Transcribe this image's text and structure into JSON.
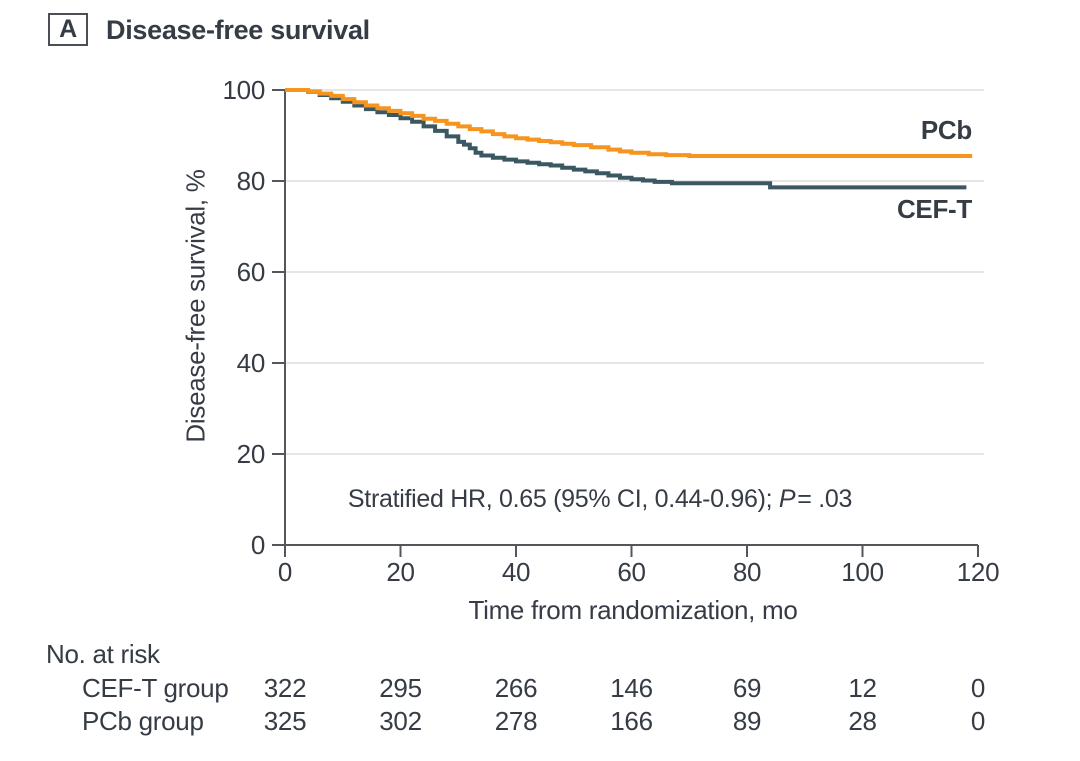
{
  "panel": {
    "letter": "A",
    "title": "Disease-free survival"
  },
  "colors": {
    "text": "#363C46",
    "axis": "#53575C",
    "grid": "#E6E6E6",
    "pcb_orange": "#F5941E",
    "ceft_teal": "#3A5762"
  },
  "chart_data": {
    "type": "line",
    "subtype": "kaplan-meier-step",
    "title": "Disease-free survival",
    "xlabel": "Time from randomization, mo",
    "ylabel": "Disease-free survival, %",
    "xlim": [
      0,
      120
    ],
    "ylim": [
      0,
      100
    ],
    "xticks": [
      0,
      20,
      40,
      60,
      80,
      100,
      120
    ],
    "yticks": [
      0,
      20,
      40,
      60,
      80,
      100
    ],
    "grid": "horizontal",
    "legend_position": "curve-end-labels",
    "annotation": {
      "text_before_p": "Stratified HR, 0.65 (95% CI, 0.44-0.96); ",
      "p_label": "P",
      "p_suffix": "= .03"
    },
    "series": [
      {
        "name": "PCb",
        "color": "#F5941E",
        "final_value": 85.5,
        "points": [
          [
            0,
            100
          ],
          [
            3.5,
            100
          ],
          [
            4,
            99.7
          ],
          [
            6,
            99.2
          ],
          [
            8,
            98.7
          ],
          [
            10,
            98.0
          ],
          [
            12,
            97.3
          ],
          [
            14,
            96.6
          ],
          [
            16,
            96.0
          ],
          [
            18,
            95.4
          ],
          [
            20,
            94.9
          ],
          [
            22,
            94.3
          ],
          [
            24,
            93.7
          ],
          [
            26,
            93.2
          ],
          [
            28,
            92.6
          ],
          [
            30,
            92.0
          ],
          [
            32,
            91.4
          ],
          [
            34,
            90.9
          ],
          [
            36,
            90.3
          ],
          [
            38,
            89.8
          ],
          [
            40,
            89.4
          ],
          [
            42,
            89.1
          ],
          [
            44,
            88.8
          ],
          [
            46,
            88.5
          ],
          [
            48,
            88.2
          ],
          [
            50,
            87.9
          ],
          [
            53,
            87.4
          ],
          [
            56,
            86.9
          ],
          [
            58,
            86.5
          ],
          [
            60,
            86.2
          ],
          [
            63,
            85.9
          ],
          [
            66,
            85.7
          ],
          [
            70,
            85.5
          ],
          [
            119,
            85.5
          ]
        ]
      },
      {
        "name": "CEF-T",
        "color": "#3A5762",
        "final_value": 78.6,
        "points": [
          [
            0,
            100
          ],
          [
            4,
            99.6
          ],
          [
            6,
            98.9
          ],
          [
            8,
            98.2
          ],
          [
            10,
            97.4
          ],
          [
            12,
            96.6
          ],
          [
            14,
            95.8
          ],
          [
            16,
            95.1
          ],
          [
            18,
            94.5
          ],
          [
            20,
            93.8
          ],
          [
            22,
            93.0
          ],
          [
            24,
            92.0
          ],
          [
            26,
            91.0
          ],
          [
            28,
            89.8
          ],
          [
            30,
            88.6
          ],
          [
            31,
            88.0
          ],
          [
            32,
            87.2
          ],
          [
            33,
            86.2
          ],
          [
            34,
            85.6
          ],
          [
            36,
            85.1
          ],
          [
            38,
            84.7
          ],
          [
            40,
            84.3
          ],
          [
            42,
            84.0
          ],
          [
            44,
            83.7
          ],
          [
            46,
            83.4
          ],
          [
            48,
            82.9
          ],
          [
            50,
            82.5
          ],
          [
            52,
            82.1
          ],
          [
            54,
            81.7
          ],
          [
            56,
            81.2
          ],
          [
            58,
            80.7
          ],
          [
            60,
            80.4
          ],
          [
            62,
            80.1
          ],
          [
            64,
            79.8
          ],
          [
            67,
            79.5
          ],
          [
            84,
            78.6
          ],
          [
            118,
            78.6
          ]
        ]
      }
    ]
  },
  "risk_table": {
    "title": "No. at risk",
    "time_columns": [
      0,
      20,
      40,
      60,
      80,
      100,
      120
    ],
    "rows": [
      {
        "label": "CEF-T group",
        "values": [
          "322",
          "295",
          "266",
          "146",
          "69",
          "12",
          "0"
        ]
      },
      {
        "label": "PCb group",
        "values": [
          "325",
          "302",
          "278",
          "166",
          "89",
          "28",
          "0"
        ]
      }
    ]
  }
}
